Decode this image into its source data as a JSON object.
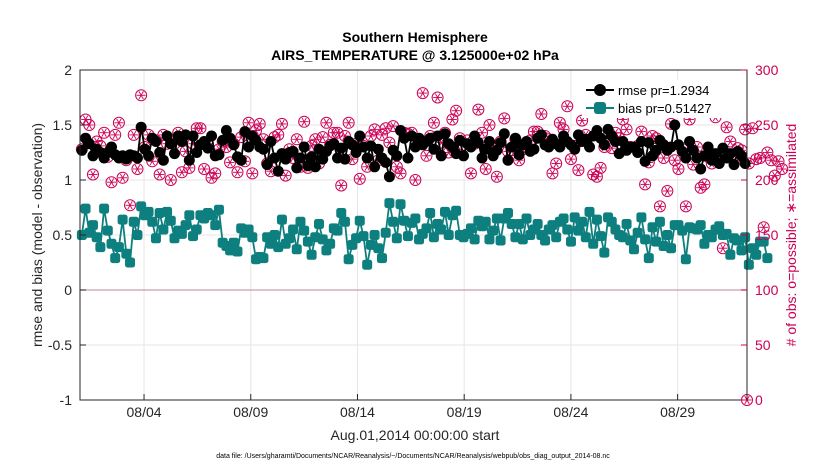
{
  "chart_data": {
    "type": "line",
    "title": "Southern Hemisphere",
    "subtitle": "AIRS_TEMPERATURE @ 3.125000e+02 hPa",
    "xlabel": "Aug.01,2014 00:00:00 start",
    "ylabel": "rmse and bias (model - observation)",
    "y2label": "# of obs: o=possible; ∗=assimilated",
    "ylim": [
      -1,
      2
    ],
    "y2lim": [
      0,
      300
    ],
    "xlim": [
      0,
      31.25
    ],
    "yticks": [
      "-1",
      "-0.5",
      "0",
      "0.5",
      "1",
      "1.5",
      "2"
    ],
    "y2ticks": [
      "0",
      "50",
      "100",
      "150",
      "200",
      "250",
      "300"
    ],
    "xticks": [
      {
        "x": 3,
        "label": "08/04"
      },
      {
        "x": 8,
        "label": "08/09"
      },
      {
        "x": 13,
        "label": "08/14"
      },
      {
        "x": 18,
        "label": "08/19"
      },
      {
        "x": 23,
        "label": "08/24"
      },
      {
        "x": 28,
        "label": "08/29"
      }
    ],
    "grid": true,
    "legend_position": "top-right",
    "footer": "data file: /Users/gharamti/Documents/NCAR/Reanalysis/~/Documents/NCAR/Reanalysis/webpub/obs_diag_output_2014-08.nc",
    "colors": {
      "rmse": "#000000",
      "bias": "#0e7f7f",
      "obs": "#cc0055",
      "zero_line": "#c8a0a8"
    },
    "series": [
      {
        "name": "rmse pr=1.2934",
        "axis": "left",
        "values": [
          1.27,
          1.38,
          1.33,
          1.22,
          1.28,
          1.25,
          1.2,
          1.25,
          1.3,
          1.23,
          1.2,
          1.22,
          1.19,
          1.23,
          1.22,
          1.2,
          1.48,
          1.28,
          1.22,
          1.38,
          1.35,
          1.25,
          1.18,
          1.4,
          1.33,
          1.24,
          1.4,
          1.35,
          1.41,
          1.18,
          1.4,
          1.25,
          1.32,
          1.35,
          1.29,
          1.4,
          1.22,
          1.23,
          1.36,
          1.45,
          1.38,
          1.32,
          1.21,
          1.18,
          1.44,
          1.3,
          1.4,
          1.36,
          1.3,
          1.28,
          1.14,
          1.35,
          1.2,
          1.08,
          1.24,
          1.19,
          1.25,
          1.26,
          1.11,
          1.2,
          1.3,
          1.13,
          1.21,
          1.12,
          1.28,
          1.19,
          1.26,
          1.31,
          1.33,
          1.2,
          1.29,
          1.19,
          1.35,
          1.32,
          1.25,
          1.4,
          1.3,
          1.2,
          1.31,
          1.12,
          1.28,
          1.2,
          1.16,
          1.03,
          1.27,
          1.22,
          1.45,
          1.38,
          1.2,
          1.4,
          1.3,
          1.38,
          1.32,
          1.35,
          1.38,
          1.28,
          1.4,
          1.22,
          1.42,
          1.33,
          1.3,
          1.24,
          1.36,
          1.22,
          1.33,
          1.3,
          1.4,
          1.34,
          1.2,
          1.28,
          1.35,
          1.22,
          1.27,
          1.34,
          1.42,
          1.18,
          1.3,
          1.38,
          1.23,
          1.32,
          1.35,
          1.26,
          1.28,
          1.38,
          1.41,
          1.32,
          1.3,
          1.37,
          1.33,
          1.3,
          1.4,
          1.35,
          1.32,
          1.28,
          1.41,
          1.35,
          1.37,
          1.3,
          1.4,
          1.45,
          1.38,
          1.32,
          1.46,
          1.4,
          1.35,
          1.24,
          1.35,
          1.27,
          1.3,
          1.3,
          1.25,
          1.35,
          1.17,
          1.34,
          1.22,
          1.27,
          1.36,
          1.32,
          1.27,
          1.3,
          1.5,
          1.32,
          1.26,
          1.2,
          1.35,
          1.27,
          1.2,
          1.1,
          1.22,
          1.3,
          1.18,
          1.24,
          1.15,
          1.29,
          1.2,
          1.24,
          1.14,
          1.26,
          1.22,
          1.15
        ]
      },
      {
        "name": "bias pr=0.51427",
        "axis": "left",
        "values": [
          0.5,
          0.74,
          0.52,
          0.59,
          0.48,
          0.39,
          0.74,
          0.54,
          0.42,
          0.29,
          0.39,
          0.64,
          0.33,
          0.25,
          0.62,
          0.5,
          0.76,
          0.68,
          0.71,
          0.62,
          0.47,
          0.7,
          0.55,
          0.71,
          0.63,
          0.47,
          0.54,
          0.51,
          0.59,
          0.68,
          0.49,
          0.55,
          0.68,
          0.65,
          0.7,
          0.68,
          0.59,
          0.73,
          0.43,
          0.4,
          0.36,
          0.43,
          0.35,
          0.56,
          0.52,
          0.55,
          0.48,
          0.28,
          0.3,
          0.29,
          0.48,
          0.42,
          0.5,
          0.39,
          0.64,
          0.42,
          0.47,
          0.55,
          0.37,
          0.62,
          0.54,
          0.44,
          0.32,
          0.48,
          0.6,
          0.46,
          0.36,
          0.42,
          0.56,
          0.54,
          0.7,
          0.62,
          0.28,
          0.41,
          0.47,
          0.63,
          0.49,
          0.23,
          0.41,
          0.5,
          0.38,
          0.29,
          0.52,
          0.79,
          0.62,
          0.47,
          0.78,
          0.63,
          0.49,
          0.61,
          0.65,
          0.46,
          0.51,
          0.56,
          0.7,
          0.48,
          0.6,
          0.55,
          0.71,
          0.5,
          0.68,
          0.72,
          0.5,
          0.48,
          0.51,
          0.56,
          0.46,
          0.63,
          0.58,
          0.62,
          0.46,
          0.54,
          0.65,
          0.45,
          0.65,
          0.7,
          0.6,
          0.48,
          0.6,
          0.46,
          0.65,
          0.5,
          0.55,
          0.6,
          0.5,
          0.45,
          0.55,
          0.59,
          0.48,
          0.62,
          0.65,
          0.55,
          0.44,
          0.66,
          0.54,
          0.62,
          0.48,
          0.71,
          0.42,
          0.64,
          0.49,
          0.34,
          0.66,
          0.62,
          0.55,
          0.5,
          0.48,
          0.6,
          0.45,
          0.37,
          0.52,
          0.66,
          0.46,
          0.29,
          0.57,
          0.44,
          0.62,
          0.4,
          0.5,
          0.38,
          0.59,
          0.59,
          0.54,
          0.28,
          0.57,
          0.56,
          0.55,
          0.59,
          0.42,
          0.5,
          0.48,
          0.55,
          0.58,
          0.5,
          0.51,
          0.32,
          0.47,
          0.45,
          0.36,
          0.48,
          0.23,
          0.38,
          0.32,
          0.44,
          0.44,
          0.29
        ]
      }
    ],
    "obs_points": {
      "axis": "right",
      "values": [
        228,
        255,
        250,
        205,
        235,
        231,
        243,
        221,
        198,
        241,
        252,
        202,
        218,
        177,
        241,
        210,
        277,
        230,
        241,
        217,
        236,
        205,
        241,
        233,
        200,
        233,
        243,
        207,
        226,
        211,
        233,
        247,
        247,
        210,
        233,
        202,
        206,
        228,
        235,
        230,
        216,
        233,
        207,
        239,
        217,
        252,
        206,
        245,
        251,
        237,
        215,
        208,
        239,
        241,
        251,
        204,
        228,
        220,
        237,
        212,
        253,
        211,
        231,
        237,
        215,
        239,
        252,
        232,
        243,
        243,
        195,
        240,
        252,
        219,
        233,
        201,
        231,
        212,
        240,
        246,
        218,
        241,
        247,
        234,
        249,
        212,
        206,
        243,
        242,
        243,
        200,
        234,
        279,
        222,
        240,
        252,
        275,
        234,
        243,
        225,
        255,
        263,
        238,
        232,
        236,
        206,
        233,
        264,
        243,
        210,
        250,
        231,
        203,
        235,
        256,
        226,
        227,
        237,
        218,
        228,
        234,
        236,
        244,
        244,
        260,
        240,
        237,
        206,
        215,
        252,
        246,
        267,
        219,
        231,
        209,
        254,
        241,
        275,
        205,
        203,
        211,
        230,
        240,
        229,
        243,
        238,
        255,
        246,
        230,
        265,
        231,
        244,
        196,
        216,
        240,
        238,
        176,
        220,
        190,
        251,
        218,
        210,
        229,
        176,
        255,
        214,
        230,
        193,
        196,
        221,
        215,
        257,
        219,
        138,
        248,
        235,
        218,
        229,
        227,
        246,
        215,
        247,
        219,
        220,
        157,
        225,
        218,
        204,
        217,
        210
      ]
    }
  }
}
